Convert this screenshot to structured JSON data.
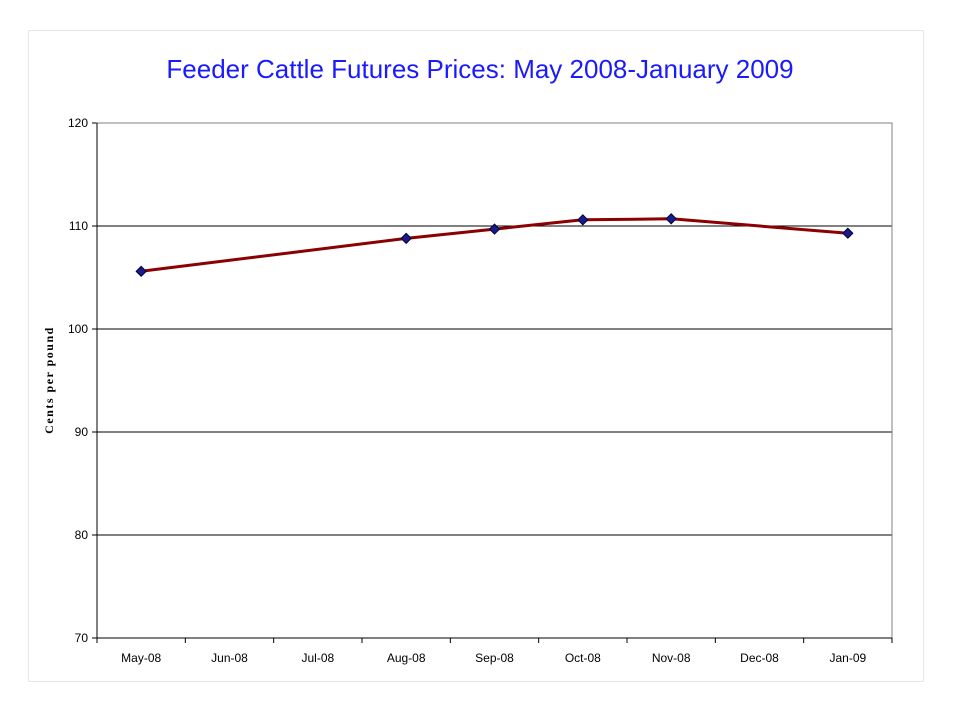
{
  "chart_data": {
    "type": "line",
    "title": "Feeder Cattle Futures Prices: May 2008-January 2009",
    "xlabel": "",
    "ylabel": "Cents per pound",
    "categories": [
      "May-08",
      "Jun-08",
      "Jul-08",
      "Aug-08",
      "Sep-08",
      "Oct-08",
      "Nov-08",
      "Dec-08",
      "Jan-09"
    ],
    "ylim": [
      70,
      120
    ],
    "yticks": [
      70,
      80,
      90,
      100,
      110,
      120
    ],
    "grid": true,
    "legend": "none",
    "series": [
      {
        "values": [
          105.6,
          null,
          null,
          108.8,
          109.7,
          110.6,
          110.7,
          null,
          109.3
        ],
        "line_color": "#8b0000",
        "marker_color": "#1a1a8c",
        "marker": "diamond"
      }
    ]
  }
}
